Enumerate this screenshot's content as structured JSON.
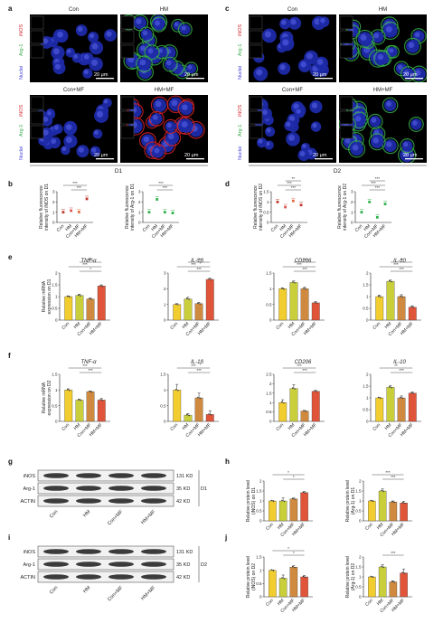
{
  "panel_letters": [
    "a",
    "b",
    "c",
    "d",
    "e",
    "f",
    "g",
    "h",
    "i",
    "j"
  ],
  "conditions": [
    "Con",
    "HM",
    "Con+MF",
    "HM+MF"
  ],
  "micro": {
    "marker_labels": {
      "inos": "iNOS",
      "arg1": "Arg-1",
      "nuclei": "Nuclei"
    },
    "scale_label": "20 μm",
    "day_labels": [
      "D1",
      "D2"
    ],
    "colors": {
      "inos": "#d2232a",
      "arg1": "#35a94a",
      "nuclei": "#3b3bd6",
      "cell": "#1d2aa8"
    }
  },
  "colors": {
    "Con": "#f2cd2f",
    "HM": "#c9cf3b",
    "Con+MF": "#d08a3f",
    "HM+MF": "#e0553a",
    "scatter": [
      "#c0392b",
      "#d9534f",
      "#e26a3c",
      "#c0392b"
    ],
    "scatter_arg": [
      "#2fb24a",
      "#2fb24a",
      "#2fb24a",
      "#2fb24a"
    ]
  },
  "chart_data": [
    {
      "id": "b1",
      "type": "scatter",
      "ylabel_lines": [
        "Relative fluorescence",
        "intensity of iNOS on D1"
      ],
      "categories": [
        "Con",
        "HM",
        "Con+MF",
        "HM+MF"
      ],
      "values": [
        1.0,
        1.15,
        1.02,
        2.3
      ],
      "ylim": [
        0,
        3
      ],
      "sig": [
        "***",
        "***"
      ]
    },
    {
      "id": "b2",
      "type": "scatter",
      "ylabel_lines": [
        "Relative fluorescence",
        "intensity of Arg-1 on D1"
      ],
      "categories": [
        "Con",
        "HM",
        "Con+MF",
        "HM+MF"
      ],
      "values": [
        1.0,
        2.25,
        1.0,
        0.92
      ],
      "ylim": [
        0,
        3
      ],
      "sig": [
        "***",
        "***"
      ]
    },
    {
      "id": "d1",
      "type": "scatter",
      "ylabel_lines": [
        "Relative fluorescence",
        "intensity of iNOS on D2"
      ],
      "categories": [
        "Con",
        "HM",
        "Con+MF",
        "HM+MF"
      ],
      "values": [
        1.0,
        0.75,
        1.05,
        0.85
      ],
      "ylim": [
        0,
        1.5
      ],
      "sig": [
        "***",
        "***",
        "**"
      ]
    },
    {
      "id": "d2",
      "type": "scatter",
      "ylabel_lines": [
        "Relative fluorescence",
        "intensity of Arg-1 on D2"
      ],
      "categories": [
        "Con",
        "HM",
        "Con+MF",
        "HM+MF"
      ],
      "values": [
        1.0,
        2.0,
        0.5,
        1.8
      ],
      "ylim": [
        0,
        3
      ],
      "sig": [
        "***",
        "***",
        "***"
      ]
    },
    {
      "id": "e1",
      "type": "bar",
      "title": "TNF-α",
      "ylabel_lines": [
        "Relative mRNA",
        "expression on D1"
      ],
      "categories": [
        "Con",
        "HM",
        "Con+MF",
        "HM+MF"
      ],
      "values": [
        1.0,
        1.05,
        0.9,
        1.45
      ],
      "errors": [
        0.03,
        0.05,
        0.04,
        0.05
      ],
      "ylim": [
        0,
        2
      ],
      "sig": [
        "*",
        "***",
        "***"
      ]
    },
    {
      "id": "e2",
      "type": "bar",
      "title": "IL-1β",
      "categories": [
        "Con",
        "HM",
        "Con+MF",
        "HM+MF"
      ],
      "values": [
        1.0,
        1.35,
        1.05,
        2.6
      ],
      "errors": [
        0.05,
        0.1,
        0.08,
        0.07
      ],
      "ylim": [
        0,
        3
      ],
      "sig": [
        "***",
        "***",
        "***"
      ]
    },
    {
      "id": "e3",
      "type": "bar",
      "title": "CD206",
      "categories": [
        "Con",
        "HM",
        "Con+MF",
        "HM+MF"
      ],
      "values": [
        1.0,
        1.2,
        1.0,
        0.55
      ],
      "errors": [
        0.03,
        0.05,
        0.05,
        0.04
      ],
      "ylim": [
        0,
        1.5
      ],
      "sig": [
        "***",
        "***",
        "***"
      ]
    },
    {
      "id": "e4",
      "type": "bar",
      "title": "IL-10",
      "categories": [
        "Con",
        "HM",
        "Con+MF",
        "HM+MF"
      ],
      "values": [
        1.0,
        1.65,
        1.0,
        0.55
      ],
      "errors": [
        0.06,
        0.05,
        0.08,
        0.06
      ],
      "ylim": [
        0,
        2
      ],
      "sig": [
        "***",
        "***",
        "**"
      ]
    },
    {
      "id": "f1",
      "type": "bar",
      "title": "TNF-α",
      "ylabel_lines": [
        "Relative mRNA",
        "expression on D2"
      ],
      "categories": [
        "Con",
        "HM",
        "Con+MF",
        "HM+MF"
      ],
      "values": [
        1.0,
        0.68,
        0.95,
        0.68
      ],
      "errors": [
        0.04,
        0.03,
        0.02,
        0.05
      ],
      "ylim": [
        0,
        1.5
      ],
      "sig": [
        "***",
        "***"
      ]
    },
    {
      "id": "f2",
      "type": "bar",
      "title": "IL-1β",
      "categories": [
        "Con",
        "HM",
        "Con+MF",
        "HM+MF"
      ],
      "values": [
        1.0,
        0.2,
        0.75,
        0.22
      ],
      "errors": [
        0.18,
        0.05,
        0.15,
        0.12
      ],
      "ylim": [
        0,
        1.5
      ],
      "sig": [
        "***",
        "***"
      ]
    },
    {
      "id": "f3",
      "type": "bar",
      "title": "CD206",
      "categories": [
        "Con",
        "HM",
        "Con+MF",
        "HM+MF"
      ],
      "values": [
        1.0,
        1.75,
        0.55,
        1.6
      ],
      "errors": [
        0.15,
        0.2,
        0.03,
        0.05
      ],
      "ylim": [
        0,
        2.5
      ],
      "sig": [
        "***",
        "***"
      ]
    },
    {
      "id": "f4",
      "type": "bar",
      "title": "IL-10",
      "categories": [
        "Con",
        "HM",
        "Con+MF",
        "HM+MF"
      ],
      "values": [
        1.0,
        1.45,
        1.0,
        1.2
      ],
      "errors": [
        0.02,
        0.07,
        0.08,
        0.05
      ],
      "ylim": [
        0,
        2
      ],
      "sig": [
        "***",
        "**"
      ]
    },
    {
      "id": "h1",
      "type": "bar",
      "ylabel_lines": [
        "Relative protein level",
        "(iNOS) on D1"
      ],
      "categories": [
        "Con",
        "HM",
        "Con+MF",
        "HM+MF"
      ],
      "values": [
        1.0,
        1.0,
        1.1,
        1.42
      ],
      "errors": [
        0.02,
        0.15,
        0.05,
        0.05
      ],
      "ylim": [
        0,
        2
      ],
      "sig": [
        "*",
        "*"
      ]
    },
    {
      "id": "h2",
      "type": "bar",
      "ylabel_lines": [
        "Relative protein level",
        "(Arg-1) on D1"
      ],
      "categories": [
        "Con",
        "HM",
        "Con+MF",
        "HM+MF"
      ],
      "values": [
        1.0,
        1.5,
        0.95,
        0.9
      ],
      "errors": [
        0.02,
        0.1,
        0.05,
        0.08
      ],
      "ylim": [
        0,
        2
      ],
      "sig": [
        "***",
        "***"
      ]
    },
    {
      "id": "j1",
      "type": "bar",
      "ylabel_lines": [
        "Relative protein level",
        "(iNOS) on D2"
      ],
      "categories": [
        "Con",
        "HM",
        "Con+MF",
        "HM+MF"
      ],
      "values": [
        1.0,
        0.7,
        1.12,
        0.75
      ],
      "errors": [
        0.01,
        0.12,
        0.05,
        0.05
      ],
      "ylim": [
        0,
        1.5
      ],
      "sig": [
        "*",
        "*"
      ]
    },
    {
      "id": "j2",
      "type": "bar",
      "ylabel_lines": [
        "Relative protein level",
        "(Arg-1) on D2"
      ],
      "categories": [
        "Con",
        "HM",
        "Con+MF",
        "HM+MF"
      ],
      "values": [
        1.0,
        1.5,
        0.75,
        1.2
      ],
      "errors": [
        0.02,
        0.12,
        0.05,
        0.2
      ],
      "ylim": [
        0,
        2
      ],
      "sig": [
        "***"
      ]
    }
  ],
  "blots": {
    "g": {
      "rows": [
        "iNOS",
        "Arg-1",
        "ACTIN"
      ],
      "kd": [
        "131 KD",
        "35 KD",
        "42 KD"
      ],
      "day": "D1",
      "lanes": [
        "Con",
        "HM",
        "Con+MF",
        "HM+MF"
      ]
    },
    "i": {
      "rows": [
        "iNOS",
        "Arg-1",
        "ACTIN"
      ],
      "kd": [
        "131 KD",
        "35 KD",
        "42 KD"
      ],
      "day": "D2",
      "lanes": [
        "Con",
        "HM",
        "Con+MF",
        "HM+MF"
      ]
    }
  }
}
